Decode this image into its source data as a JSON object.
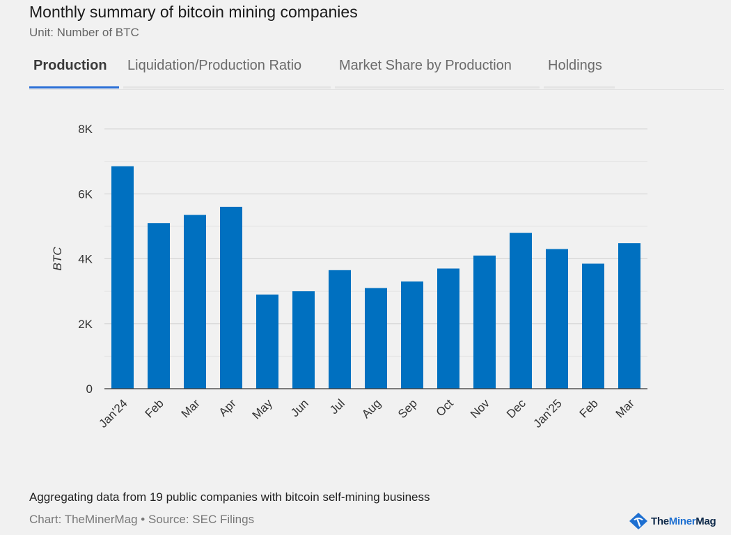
{
  "header": {
    "title": "Monthly summary of bitcoin mining companies",
    "subtitle": "Unit: Number of BTC"
  },
  "tabs": [
    {
      "label": "Production",
      "active": true
    },
    {
      "label": "Liquidation/Production Ratio",
      "active": false
    },
    {
      "label": "Market Share by Production",
      "active": false
    },
    {
      "label": "Holdings",
      "active": false
    }
  ],
  "chart_data": {
    "type": "bar",
    "categories": [
      "Jan'24",
      "Feb",
      "Mar",
      "Apr",
      "May",
      "Jun",
      "Jul",
      "Aug",
      "Sep",
      "Oct",
      "Nov",
      "Dec",
      "Jan'25",
      "Feb",
      "Mar"
    ],
    "values": [
      6850,
      5100,
      5350,
      5600,
      2900,
      3000,
      3650,
      3100,
      3300,
      3700,
      4100,
      4800,
      4300,
      3850,
      4480
    ],
    "ylabel": "BTC",
    "xlabel": "",
    "ylim": [
      0,
      8000
    ],
    "yticks": [
      0,
      2000,
      4000,
      6000,
      8000
    ],
    "ytick_labels": [
      "0",
      "2K",
      "4K",
      "6K",
      "8K"
    ],
    "bar_color": "#0070c0",
    "grid": true
  },
  "footer": {
    "note": "Aggregating data from 19 public companies with bitcoin self-mining business",
    "credit": "Chart: TheMinerMag • Source: SEC Filings",
    "brand_part1": "The",
    "brand_part2": "Miner",
    "brand_part3": "Mag"
  }
}
